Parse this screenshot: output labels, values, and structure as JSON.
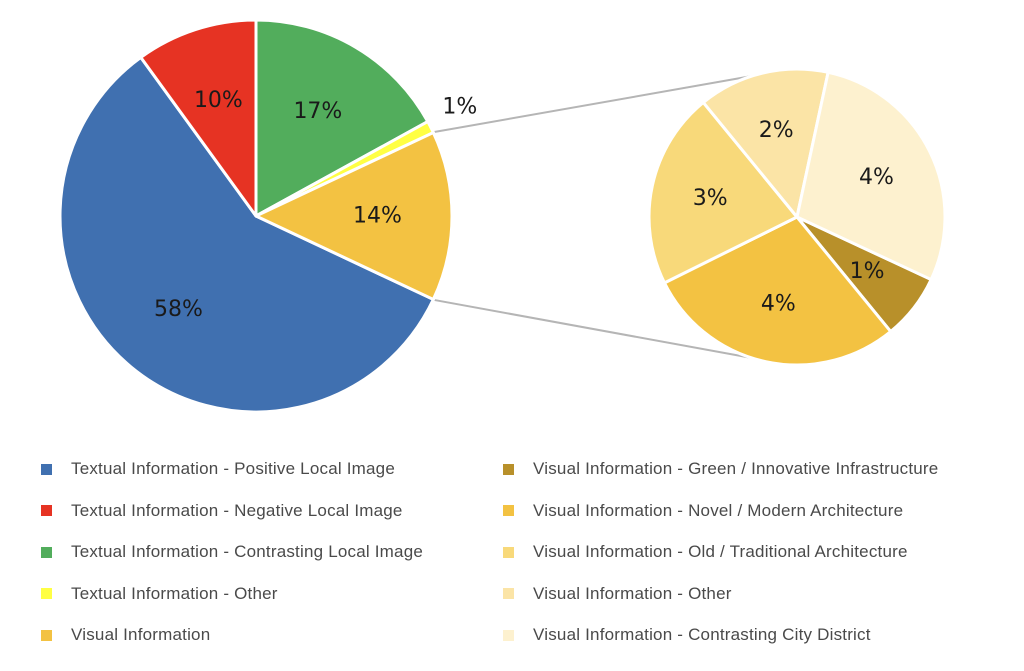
{
  "chart_data": {
    "type": "pie",
    "main": {
      "slices": [
        {
          "label": "Textual Information - Positive Local Image",
          "value": 58,
          "display": "58%",
          "color": "#4070B0"
        },
        {
          "label": "Textual Information - Negative Local Image",
          "value": 10,
          "display": "10%",
          "color": "#E63323"
        },
        {
          "label": "Textual Information - Contrasting Local Image",
          "value": 17,
          "display": "17%",
          "color": "#52AD5C"
        },
        {
          "label": "Textual Information - Other",
          "value": 1,
          "display": "1%",
          "color": "#FFFF44"
        },
        {
          "label": "Visual Information",
          "value": 14,
          "display": "14%",
          "color": "#F3C242"
        }
      ]
    },
    "breakdown": {
      "of": "Visual Information",
      "slices": [
        {
          "label": "Visual Information - Green / Innovative Infrastructure",
          "value": 1,
          "display": "1%",
          "color": "#B8902A"
        },
        {
          "label": "Visual Information - Novel / Modern Architecture",
          "value": 4,
          "display": "4%",
          "color": "#F3C242"
        },
        {
          "label": "Visual Information - Old / Traditional Architecture",
          "value": 3,
          "display": "3%",
          "color": "#F8D97A"
        },
        {
          "label": "Visual Information - Other",
          "value": 2,
          "display": "2%",
          "color": "#FBE4A6"
        },
        {
          "label": "Visual Information - Contrasting City District",
          "value": 4,
          "display": "4%",
          "color": "#FDF1CF"
        }
      ]
    },
    "legend": {
      "placement": "bottom",
      "items": [
        {
          "label": "Textual Information - Positive Local Image",
          "color": "#4070B0"
        },
        {
          "label": "Textual Information - Negative Local Image",
          "color": "#E63323"
        },
        {
          "label": "Textual Information - Contrasting Local Image",
          "color": "#52AD5C"
        },
        {
          "label": "Textual Information - Other",
          "color": "#FFFF44"
        },
        {
          "label": "Visual Information",
          "color": "#F3C242"
        },
        {
          "label": "Visual Information - Green / Innovative Infrastructure",
          "color": "#B8902A"
        },
        {
          "label": "Visual Information - Novel / Modern Architecture",
          "color": "#F3C242"
        },
        {
          "label": "Visual Information - Old / Traditional Architecture",
          "color": "#F8D97A"
        },
        {
          "label": "Visual Information - Other",
          "color": "#FBE4A6"
        },
        {
          "label": "Visual Information - Contrasting City District",
          "color": "#FDF1CF"
        }
      ]
    }
  }
}
